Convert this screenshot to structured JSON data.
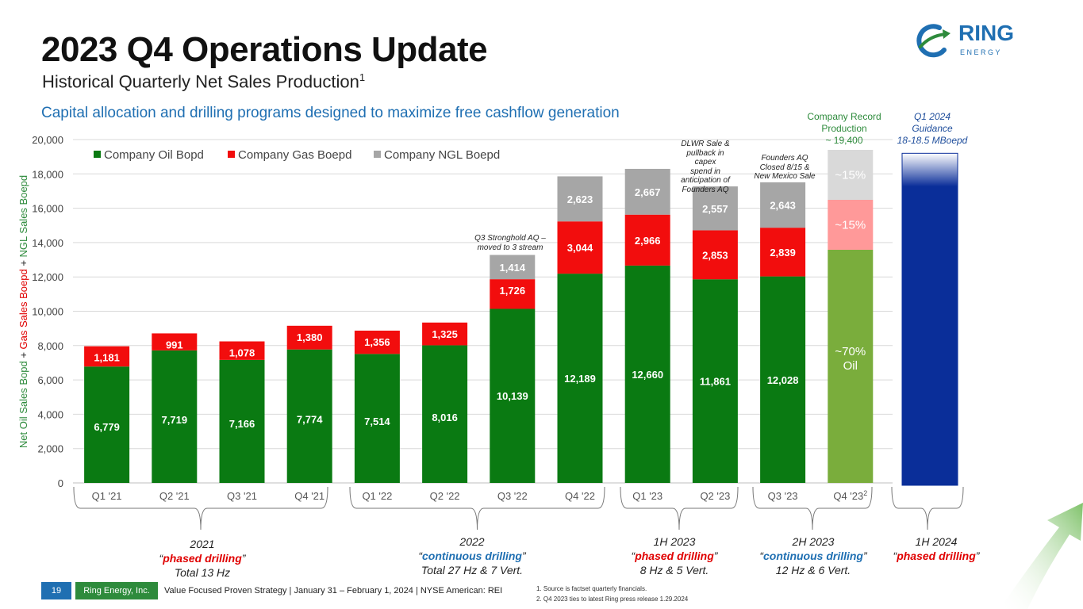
{
  "header": {
    "title": "2023 Q4 Operations Update",
    "subtitle": "Historical Quarterly Net Sales Production",
    "subtitle_sup": "1",
    "tagline": "Capital allocation and drilling programs designed to maximize free cashflow generation"
  },
  "logo": {
    "word": "RING",
    "sub": "E N E R G Y"
  },
  "chart_data": {
    "type": "bar",
    "stacked": true,
    "title": "",
    "ylabel_parts": [
      "Net Oil Sales Bopd",
      " + ",
      "Gas Sales Boepd",
      " + ",
      "NGL Sales Boepd"
    ],
    "ylim": [
      0,
      20000
    ],
    "yticks": [
      0,
      2000,
      4000,
      6000,
      8000,
      10000,
      12000,
      14000,
      16000,
      18000,
      20000
    ],
    "ytick_labels": [
      "0",
      "2,000",
      "4,000",
      "6,000",
      "8,000",
      "10,000",
      "12,000",
      "14,000",
      "16,000",
      "18,000",
      "20,000"
    ],
    "categories": [
      "Q1 '21",
      "Q2 '21",
      "Q3 '21",
      "Q4 '21",
      "Q1 '22",
      "Q2 '22",
      "Q3 '22",
      "Q4 '22",
      "Q1 '23",
      "Q2 '23",
      "Q3 '23",
      "Q4 '23"
    ],
    "last_category_sup": "2",
    "series": [
      {
        "name": "Company Oil Bopd",
        "color": "#0a7a12",
        "values": [
          6779,
          7719,
          7166,
          7774,
          7514,
          8016,
          10139,
          12189,
          12660,
          11861,
          12028,
          13580
        ]
      },
      {
        "name": "Company Gas Boepd",
        "color": "#f20d0d",
        "values": [
          1181,
          991,
          1078,
          1380,
          1356,
          1325,
          1726,
          3044,
          2966,
          2853,
          2839,
          2910
        ]
      },
      {
        "name": "Company NGL Boepd",
        "color": "#a6a6a6",
        "values": [
          0,
          0,
          0,
          0,
          0,
          0,
          1414,
          2623,
          2667,
          2557,
          2643,
          2910
        ]
      }
    ],
    "data_labels": {
      "oil": [
        "6,779",
        "7,719",
        "7,166",
        "7,774",
        "7,514",
        "8,016",
        "10,139",
        "12,189",
        "12,660",
        "11,861",
        "12,028",
        ""
      ],
      "gas": [
        "1,181",
        "991",
        "1,078",
        "1,380",
        "1,356",
        "1,325",
        "1,726",
        "3,044",
        "2,966",
        "2,853",
        "2,839",
        ""
      ],
      "ngl": [
        "",
        "",
        "",
        "",
        "",
        "",
        "1,414",
        "2,623",
        "2,667",
        "2,557",
        "2,643",
        ""
      ]
    },
    "q4_23": {
      "colors": {
        "oil": "#7aad3c",
        "gas": "#ff9999",
        "ngl": "#d9d9d9"
      },
      "oil_label_line1": "~70%",
      "oil_label_line2": "Oil",
      "gas_label": "~15%",
      "ngl_label": "~15%"
    },
    "guidance_bar": {
      "value": 19200,
      "color": "#0a2e99",
      "label_lines": [
        "Q1 2024",
        "Guidance",
        "18-18.5 MBoepd"
      ]
    },
    "record_label_lines": [
      "Company Record",
      "Production",
      "~ 19,400"
    ]
  },
  "annotations": {
    "q3_22": [
      "Q3 Stronghold AQ –",
      "moved to 3 stream"
    ],
    "q2_23": [
      "DLWR Sale &",
      "pullback in capex",
      "spend in",
      "anticipation of",
      "Founders AQ"
    ],
    "q3_23": [
      "Founders AQ",
      "Closed 8/15 &",
      "New Mexico Sale"
    ]
  },
  "periods": [
    {
      "year": "2021",
      "program": "phased drilling",
      "wells": "Total 13 Hz"
    },
    {
      "year": "2022",
      "program": "continuous drilling",
      "wells": "Total 27 Hz & 7 Vert."
    },
    {
      "year": "1H 2023",
      "program": "phased drilling",
      "wells": "8 Hz & 5 Vert."
    },
    {
      "year": "2H 2023",
      "program": "continuous drilling",
      "wells": "12 Hz & 6 Vert."
    },
    {
      "year": "1H 2024",
      "program": "phased drilling",
      "wells": ""
    }
  ],
  "footer": {
    "page": "19",
    "company": "Ring Energy, Inc.",
    "text": "Value Focused Proven Strategy  | January 31 – February 1, 2024 |  NYSE American: REI",
    "footnotes": [
      "1.     Source is factset quarterly financials.",
      "2.     Q4 2023 ties to latest Ring press release 1.29.2024"
    ]
  },
  "colors": {
    "blue": "#1f6fb2",
    "green": "#2e8b3c",
    "red": "#e00000"
  }
}
